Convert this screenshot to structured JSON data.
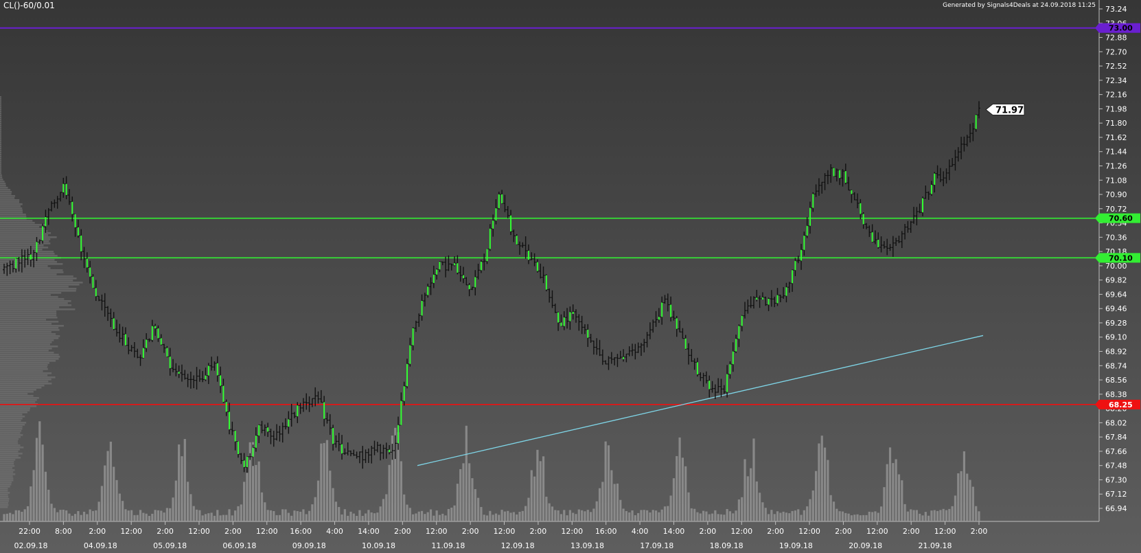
{
  "header": {
    "symbol": "CL()-60/0.01",
    "credit": "Generated by Signals4Deals at 24.09.2018 11:25"
  },
  "colors": {
    "background_top": "#363636",
    "background_bottom": "#5e5e5e",
    "candle": "#111111",
    "candle_highlight": "#33ff33",
    "support": "#33ee33",
    "resistance": "#ee1111",
    "top_level": "#6a1fd0",
    "trendline": "#7fd6e8",
    "volume": "#9a9a9a",
    "profile": "#7a7a7a"
  },
  "chart_data": {
    "type": "candlestick",
    "title": "",
    "xlabel": "",
    "ylabel": "",
    "ylim": [
      66.85,
      73.3
    ],
    "grid": false,
    "y_ticks": [
      "73.24",
      "73.06",
      "72.88",
      "72.70",
      "72.52",
      "72.34",
      "72.16",
      "71.98",
      "71.80",
      "71.62",
      "71.44",
      "71.26",
      "71.08",
      "70.90",
      "70.72",
      "70.54",
      "70.36",
      "70.18",
      "70.00",
      "69.82",
      "69.64",
      "69.46",
      "69.28",
      "69.10",
      "68.92",
      "68.74",
      "68.56",
      "68.38",
      "68.20",
      "68.02",
      "67.84",
      "67.66",
      "67.48",
      "67.30",
      "67.12",
      "66.94"
    ],
    "x_time_ticks": [
      "22:00",
      "8:00",
      "2:00",
      "12:00",
      "2:00",
      "12:00",
      "2:00",
      "12:00",
      "16:00",
      "4:00",
      "14:00",
      "2:00",
      "12:00",
      "2:00",
      "12:00",
      "2:00",
      "12:00",
      "16:00",
      "4:00",
      "14:00",
      "2:00",
      "12:00",
      "2:00",
      "12:00",
      "2:00",
      "12:00",
      "2:00",
      "12:00",
      "2:00"
    ],
    "x_date_ticks": [
      "02.09.18",
      "04.09.18",
      "05.09.18",
      "06.09.18",
      "09.09.18",
      "10.09.18",
      "11.09.18",
      "12.09.18",
      "13.09.18",
      "17.09.18",
      "18.09.18",
      "19.09.18",
      "20.09.18",
      "21.09.18"
    ],
    "levels": [
      {
        "label": "73.00",
        "value": 73.0,
        "kind": "top"
      },
      {
        "label": "70.60",
        "value": 70.6,
        "kind": "support"
      },
      {
        "label": "70.10",
        "value": 70.1,
        "kind": "support"
      },
      {
        "label": "68.25",
        "value": 68.25,
        "kind": "resistance"
      }
    ],
    "last_price": {
      "label": "71.97",
      "value": 71.97
    },
    "trendline": {
      "from": 67.48,
      "to": 69.12
    },
    "anchors": [
      [
        69.95,
        70.0
      ],
      [
        70.0,
        70.1
      ],
      [
        70.1,
        70.2
      ],
      [
        70.3,
        71.1
      ],
      [
        71.3,
        70.8
      ],
      [
        70.5,
        70.1
      ],
      [
        70.0,
        69.4
      ],
      [
        69.3,
        69.4
      ],
      [
        69.1,
        69.0
      ],
      [
        68.8,
        68.9
      ],
      [
        69.3,
        69.2
      ],
      [
        68.8,
        68.7
      ],
      [
        68.6,
        68.6
      ],
      [
        68.5,
        68.6
      ],
      [
        68.8,
        68.8
      ],
      [
        68.5,
        67.5
      ],
      [
        67.3,
        67.6
      ],
      [
        67.9,
        68.0
      ],
      [
        67.9,
        67.8
      ],
      [
        68.0,
        68.1
      ],
      [
        68.2,
        68.4
      ],
      [
        68.3,
        68.3
      ],
      [
        67.9,
        67.6
      ],
      [
        67.6,
        67.6
      ],
      [
        67.6,
        67.6
      ],
      [
        67.7,
        67.7
      ],
      [
        67.6,
        67.6
      ],
      [
        68.7,
        69.3
      ],
      [
        69.4,
        69.9
      ],
      [
        70.0,
        70.0
      ],
      [
        70.1,
        69.9
      ],
      [
        69.8,
        69.6
      ],
      [
        70.0,
        70.2
      ],
      [
        70.9,
        70.9
      ],
      [
        70.4,
        70.3
      ],
      [
        70.2,
        70.0
      ],
      [
        69.9,
        69.8
      ],
      [
        69.5,
        69.0
      ],
      [
        69.2,
        69.6
      ],
      [
        69.4,
        68.7
      ],
      [
        68.7,
        68.8
      ],
      [
        68.8,
        68.9
      ],
      [
        68.8,
        69.0
      ],
      [
        69.1,
        69.2
      ],
      [
        69.5,
        69.6
      ],
      [
        69.4,
        69.0
      ],
      [
        68.9,
        68.6
      ],
      [
        68.5,
        68.4
      ],
      [
        68.4,
        68.5
      ],
      [
        68.7,
        69.8
      ],
      [
        69.7,
        69.5
      ],
      [
        69.6,
        69.5
      ],
      [
        69.6,
        69.7
      ],
      [
        70.0,
        70.3
      ],
      [
        70.9,
        70.9
      ],
      [
        71.2,
        71.2
      ],
      [
        71.2,
        71.1
      ],
      [
        70.8,
        70.6
      ],
      [
        70.4,
        70.2
      ],
      [
        70.1,
        70.2
      ],
      [
        70.3,
        70.6
      ],
      [
        70.8,
        70.6
      ],
      [
        71.0,
        71.2
      ],
      [
        70.8,
        71.6
      ],
      [
        71.5,
        71.6
      ],
      [
        71.9,
        71.97
      ]
    ],
    "volume_profile": {
      "bins": [
        70.7,
        70.4,
        70.1,
        69.8,
        69.5,
        69.2,
        68.9,
        68.6,
        68.3,
        68.0,
        67.7,
        67.4,
        67.1
      ],
      "widths": [
        0.2,
        0.45,
        0.5,
        0.65,
        0.58,
        0.52,
        0.5,
        0.45,
        0.3,
        0.22,
        0.18,
        0.12,
        0.08
      ]
    }
  }
}
